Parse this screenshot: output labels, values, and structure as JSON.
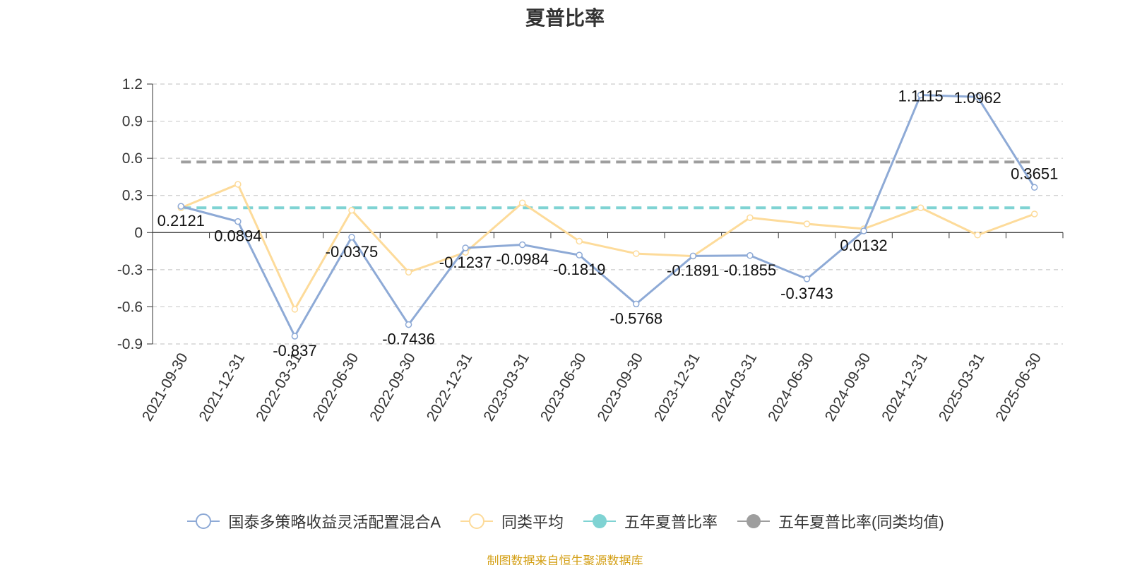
{
  "title": "夏普比率",
  "source_note": "制图数据来自恒生聚源数据库",
  "legend": [
    {
      "label": "国泰多策略收益灵活配置混合A",
      "color": "#8eaad6",
      "icon": "hollow-circle"
    },
    {
      "label": "同类平均",
      "color": "#fddb9a",
      "icon": "hollow-circle"
    },
    {
      "label": "五年夏普比率",
      "color": "#7fd3d3",
      "icon": "filled-circle"
    },
    {
      "label": "五年夏普比率(同类均值)",
      "color": "#9e9e9e",
      "icon": "filled-circle"
    }
  ],
  "chart_data": {
    "type": "line",
    "title": "夏普比率",
    "categories": [
      "2021-09-30",
      "2021-12-31",
      "2022-03-31",
      "2022-06-30",
      "2022-09-30",
      "2022-12-31",
      "2023-03-31",
      "2023-06-30",
      "2023-09-30",
      "2023-12-31",
      "2024-03-31",
      "2024-06-30",
      "2024-09-30",
      "2024-12-31",
      "2025-03-31",
      "2025-06-30"
    ],
    "ylim": [
      -0.9,
      1.2
    ],
    "yticks": [
      "1.2",
      "0.9",
      "0.6",
      "0.3",
      "0",
      "-0.3",
      "-0.6",
      "-0.9"
    ],
    "grid": true,
    "legend_position": "bottom",
    "series": [
      {
        "name": "国泰多策略收益灵活配置混合A",
        "color": "#8eaad6",
        "values": [
          0.2121,
          0.0894,
          -0.837,
          -0.0375,
          -0.7436,
          -0.1237,
          -0.0984,
          -0.1819,
          -0.5768,
          -0.1891,
          -0.1855,
          -0.3743,
          0.0132,
          1.1115,
          1.0962,
          0.3651
        ],
        "labels": [
          "0.2121",
          "0.0894",
          "-0.837",
          "-0.0375",
          "-0.7436",
          "-0.1237",
          "-0.0984",
          "-0.1819",
          "-0.5768",
          "-0.1891",
          "-0.1855",
          "-0.3743",
          "0.0132",
          "1.1115",
          "1.0962",
          "0.3651"
        ]
      },
      {
        "name": "同类平均",
        "color": "#fddb9a",
        "values": [
          0.2,
          0.39,
          -0.62,
          0.18,
          -0.32,
          -0.16,
          0.24,
          -0.07,
          -0.17,
          -0.19,
          0.12,
          0.07,
          0.03,
          0.2,
          -0.02,
          0.15
        ]
      }
    ],
    "reference_lines": [
      {
        "name": "五年夏普比率",
        "value": 0.2,
        "color": "#7fd3d3"
      },
      {
        "name": "五年夏普比率(同类均值)",
        "value": 0.57,
        "color": "#9e9e9e"
      }
    ]
  }
}
